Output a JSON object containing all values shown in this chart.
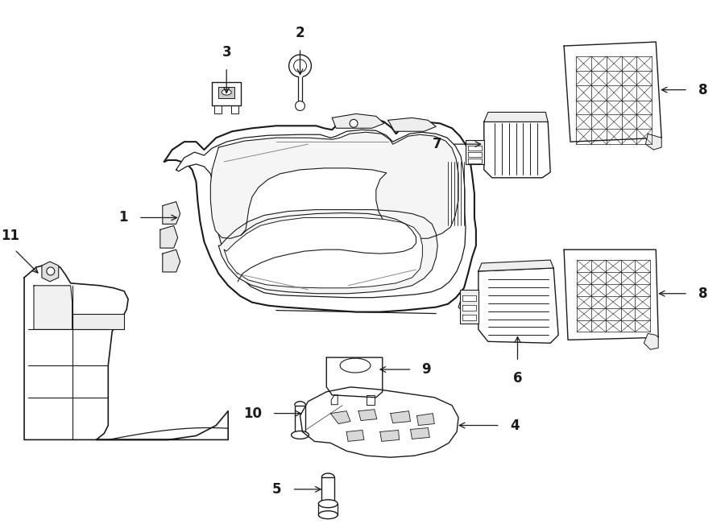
{
  "bg_color": "#ffffff",
  "line_color": "#1a1a1a",
  "lw": 1.1,
  "fig_width": 9.0,
  "fig_height": 6.61,
  "dpi": 100
}
